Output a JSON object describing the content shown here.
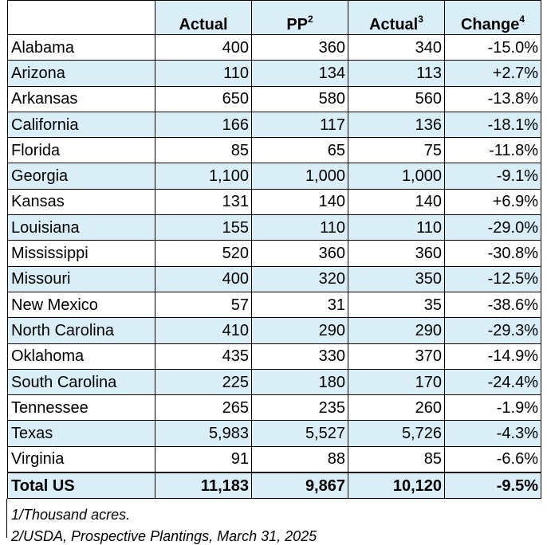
{
  "header": {
    "c1": "Actual",
    "c2": "PP",
    "c2_sup": "2",
    "c3": "Actual",
    "c3_sup": "3",
    "c4": "Change",
    "c4_sup": "4"
  },
  "rows": [
    {
      "state": "Alabama",
      "a": "400",
      "pp": "360",
      "a2": "340",
      "chg": "-15.0%"
    },
    {
      "state": "Arizona",
      "a": "110",
      "pp": "134",
      "a2": "113",
      "chg": "+2.7%"
    },
    {
      "state": "Arkansas",
      "a": "650",
      "pp": "580",
      "a2": "560",
      "chg": "-13.8%"
    },
    {
      "state": "California",
      "a": "166",
      "pp": "117",
      "a2": "136",
      "chg": "-18.1%"
    },
    {
      "state": "Florida",
      "a": "85",
      "pp": "65",
      "a2": "75",
      "chg": "-11.8%"
    },
    {
      "state": "Georgia",
      "a": "1,100",
      "pp": "1,000",
      "a2": "1,000",
      "chg": "-9.1%"
    },
    {
      "state": "Kansas",
      "a": "131",
      "pp": "140",
      "a2": "140",
      "chg": "+6.9%"
    },
    {
      "state": "Louisiana",
      "a": "155",
      "pp": "110",
      "a2": "110",
      "chg": "-29.0%"
    },
    {
      "state": "Mississippi",
      "a": "520",
      "pp": "360",
      "a2": "360",
      "chg": "-30.8%"
    },
    {
      "state": "Missouri",
      "a": "400",
      "pp": "320",
      "a2": "350",
      "chg": "-12.5%"
    },
    {
      "state": "New Mexico",
      "a": "57",
      "pp": "31",
      "a2": "35",
      "chg": "-38.6%"
    },
    {
      "state": "North Carolina",
      "a": "410",
      "pp": "290",
      "a2": "290",
      "chg": "-29.3%"
    },
    {
      "state": "Oklahoma",
      "a": "435",
      "pp": "330",
      "a2": "370",
      "chg": "-14.9%"
    },
    {
      "state": "South Carolina",
      "a": "225",
      "pp": "180",
      "a2": "170",
      "chg": "-24.4%"
    },
    {
      "state": "Tennessee",
      "a": "265",
      "pp": "235",
      "a2": "260",
      "chg": "-1.9%"
    },
    {
      "state": "Texas",
      "a": "5,983",
      "pp": "5,527",
      "a2": "5,726",
      "chg": "-4.3%"
    },
    {
      "state": "Virginia",
      "a": "91",
      "pp": "88",
      "a2": "85",
      "chg": "-6.6%"
    }
  ],
  "total": {
    "state": "Total US",
    "a": "11,183",
    "pp": "9,867",
    "a2": "10,120",
    "chg": "-9.5%"
  },
  "notes": {
    "n1": "1/Thousand acres.",
    "n2": "2/USDA, Prospective Plantings, March 31, 2025"
  },
  "colors": {
    "band": "#daeef8",
    "border": "#000000"
  }
}
